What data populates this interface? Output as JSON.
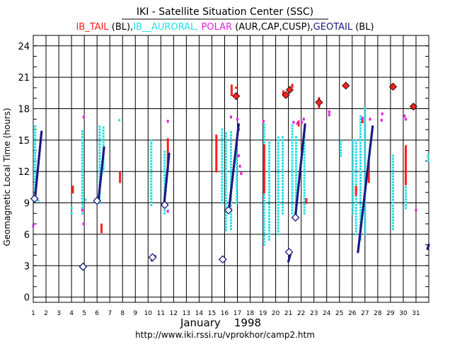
{
  "chart_data": {
    "type": "scatter",
    "title": "IKI - Satellite Situation Center (SSC)",
    "legend": [
      {
        "text": "IB_TAIL",
        "color": "#ff2020"
      },
      {
        "text": " (BL),",
        "color": "#000000"
      },
      {
        "text": "IB__AURORAL,",
        "color": "#20e0e8"
      },
      {
        "text": " POLAR",
        "color": "#e020e0"
      },
      {
        "text": " (AUR,CAP,CUSP),",
        "color": "#000000"
      },
      {
        "text": "GEOTAIL",
        "color": "#1a1a80"
      },
      {
        "text": " (BL)",
        "color": "#000000"
      }
    ],
    "ylabel": "Geomagnetic Local Time  (hours)",
    "xlabel": "January    1998",
    "url": "http://www.iki.rssi.ru/vprokhor/camp2.htm",
    "xlim": [
      1,
      32
    ],
    "ylim": [
      -0.5,
      25
    ],
    "x_ticks": [
      "1",
      "2",
      "3",
      "4",
      "5",
      "6",
      "7",
      "8",
      "9",
      "10",
      "11",
      "12",
      "13",
      "14",
      "15",
      "16",
      "17",
      "18",
      "19",
      "20",
      "21",
      "22",
      "23",
      "24",
      "25",
      "26",
      "27",
      "28",
      "29",
      "30",
      "31"
    ],
    "y_ticks": [
      "0",
      "3",
      "6",
      "9",
      "12",
      "15",
      "18",
      "21",
      "24"
    ],
    "grid": true,
    "colors": {
      "tail": "#ff2020",
      "auroral": "#20e0e8",
      "polar": "#e020e0",
      "geotail": "#1a1a80",
      "grid": "#000000"
    },
    "series": [
      {
        "name": "IB_TAIL",
        "color": "#ff2020",
        "segments": [
          {
            "x": 4.1,
            "y1": 10.0,
            "y2": 10.6
          },
          {
            "x": 6.35,
            "y1": 6.2,
            "y2": 7.0
          },
          {
            "x": 7.8,
            "y1": 11.0,
            "y2": 12.0
          },
          {
            "x": 11.55,
            "y1": 12.2,
            "y2": 15.2
          },
          {
            "x": 15.35,
            "y1": 12.0,
            "y2": 15.5
          },
          {
            "x": 16.55,
            "y1": 19.3,
            "y2": 20.2
          },
          {
            "x": 16.9,
            "y1": 20.0,
            "y2": 20.1
          },
          {
            "x": 19.1,
            "y1": 10.0,
            "y2": 14.5
          },
          {
            "x": 20.6,
            "y1": 19.3,
            "y2": 19.7
          },
          {
            "x": 21.3,
            "y1": 20.1,
            "y2": 20.4
          },
          {
            "x": 21.8,
            "y1": 16.4,
            "y2": 16.9
          },
          {
            "x": 22.4,
            "y1": 9.0,
            "y2": 9.4
          },
          {
            "x": 23.4,
            "y1": 18.1,
            "y2": 19.0
          },
          {
            "x": 26.3,
            "y1": 9.8,
            "y2": 10.6
          },
          {
            "x": 26.8,
            "y1": 16.7,
            "y2": 17.2
          },
          {
            "x": 27.3,
            "y1": 11.0,
            "y2": 13.0
          },
          {
            "x": 29.15,
            "y1": 20.1,
            "y2": 20.3
          },
          {
            "x": 30.2,
            "y1": 10.8,
            "y2": 14.5
          },
          {
            "x": 30.75,
            "y1": 18.0,
            "y2": 18.4
          }
        ],
        "markers": [
          [
            16.9,
            19.2
          ],
          [
            20.8,
            19.3
          ],
          [
            21.1,
            19.8
          ],
          [
            23.4,
            18.6
          ],
          [
            25.5,
            20.2
          ],
          [
            29.2,
            20.1
          ],
          [
            30.8,
            18.2
          ]
        ]
      },
      {
        "name": "IB__AURORAL",
        "color": "#20e0e8",
        "segments": [
          {
            "x": 1.15,
            "y1": 9.3,
            "y2": 16.5
          },
          {
            "x": 4.85,
            "y1": 8.0,
            "y2": 16.0
          },
          {
            "x": 6.2,
            "y1": 9.0,
            "y2": 16.3
          },
          {
            "x": 6.5,
            "y1": 12.0,
            "y2": 16.3
          },
          {
            "x": 10.25,
            "y1": 8.8,
            "y2": 15.2
          },
          {
            "x": 11.3,
            "y1": 8.0,
            "y2": 14.0
          },
          {
            "x": 15.8,
            "y1": 9.0,
            "y2": 16.0
          },
          {
            "x": 16.1,
            "y1": 6.4,
            "y2": 15.9
          },
          {
            "x": 16.5,
            "y1": 6.5,
            "y2": 15.9
          },
          {
            "x": 16.95,
            "y1": 9.0,
            "y2": 14.5
          },
          {
            "x": 19.1,
            "y1": 5.0,
            "y2": 16.5
          },
          {
            "x": 19.5,
            "y1": 5.5,
            "y2": 15.0
          },
          {
            "x": 20.2,
            "y1": 6.0,
            "y2": 15.5
          },
          {
            "x": 20.55,
            "y1": 8.0,
            "y2": 15.5
          },
          {
            "x": 21.3,
            "y1": 8.0,
            "y2": 16.5
          },
          {
            "x": 21.6,
            "y1": 8.0,
            "y2": 15.5
          },
          {
            "x": 22.25,
            "y1": 8.0,
            "y2": 16.0
          },
          {
            "x": 25.1,
            "y1": 13.5,
            "y2": 15.0
          },
          {
            "x": 26.05,
            "y1": 8.0,
            "y2": 15.0
          },
          {
            "x": 26.3,
            "y1": 6.0,
            "y2": 15.0
          },
          {
            "x": 26.65,
            "y1": 5.5,
            "y2": 17.3
          },
          {
            "x": 27.0,
            "y1": 6.0,
            "y2": 18.1
          },
          {
            "x": 29.2,
            "y1": 6.5,
            "y2": 13.5
          },
          {
            "x": 30.2,
            "y1": 8.5,
            "y2": 14.5
          },
          {
            "x": 31.95,
            "y1": 13.0,
            "y2": 13.8
          }
        ],
        "markers": [
          [
            4.0,
            8.0
          ],
          [
            4.0,
            8.5
          ],
          [
            7.75,
            16.9
          ],
          [
            1.4,
            9.2
          ],
          [
            5.1,
            9.3
          ]
        ]
      },
      {
        "name": "POLAR",
        "color": "#e020e0",
        "markers": [
          [
            1.0,
            6.8
          ],
          [
            4.85,
            8.3
          ],
          [
            4.95,
            7.0
          ],
          [
            4.95,
            17.2
          ],
          [
            11.55,
            8.2
          ],
          [
            11.55,
            16.8
          ],
          [
            16.5,
            17.2
          ],
          [
            17.1,
            13.5
          ],
          [
            17.1,
            16.0
          ],
          [
            17.2,
            12.5
          ],
          [
            17.3,
            11.8
          ],
          [
            17.0,
            17.0
          ],
          [
            19.05,
            16.8
          ],
          [
            21.4,
            16.7
          ],
          [
            21.7,
            16.6
          ],
          [
            22.05,
            16.7
          ],
          [
            22.2,
            17.0
          ],
          [
            24.2,
            17.4
          ],
          [
            24.2,
            17.7
          ],
          [
            26.8,
            17.1
          ],
          [
            27.4,
            17.0
          ],
          [
            28.3,
            16.9
          ],
          [
            28.35,
            17.5
          ],
          [
            30.1,
            17.3
          ],
          [
            30.2,
            17.0
          ],
          [
            31.0,
            8.3
          ]
        ]
      },
      {
        "name": "GEOTAIL",
        "color": "#1a1a80",
        "segments": [
          {
            "x1": 1.15,
            "y1": 9.6,
            "x2": 1.65,
            "y2": 15.8
          },
          {
            "x1": 6.1,
            "y1": 9.1,
            "x2": 6.55,
            "y2": 14.3
          },
          {
            "x1": 11.25,
            "y1": 8.8,
            "x2": 11.65,
            "y2": 13.7
          },
          {
            "x1": 16.35,
            "y1": 8.5,
            "x2": 17.1,
            "y2": 16.5
          },
          {
            "x1": 21.55,
            "y1": 7.8,
            "x2": 22.3,
            "y2": 16.5
          },
          {
            "x1": 26.45,
            "y1": 4.3,
            "x2": 27.6,
            "y2": 16.3
          },
          {
            "x1": 21.0,
            "y1": 3.4,
            "x2": 21.2,
            "y2": 4.3
          },
          {
            "x1": 10.3,
            "y1": 3.5,
            "x2": 10.55,
            "y2": 3.9
          },
          {
            "x1": 15.85,
            "y1": 3.5,
            "x2": 16.0,
            "y2": 3.6
          },
          {
            "x1": 4.9,
            "y1": 2.9,
            "x2": 5.0,
            "y2": 3.0
          },
          {
            "x1": 31.9,
            "y1": 4.6,
            "x2": 32.0,
            "y2": 5.0
          }
        ],
        "markers": [
          [
            1.1,
            9.4
          ],
          [
            6.0,
            9.2
          ],
          [
            11.3,
            8.8
          ],
          [
            16.3,
            8.3
          ],
          [
            21.55,
            7.6
          ],
          [
            21.05,
            4.3
          ],
          [
            10.35,
            3.8
          ],
          [
            15.85,
            3.6
          ],
          [
            4.9,
            2.9
          ]
        ]
      }
    ]
  }
}
